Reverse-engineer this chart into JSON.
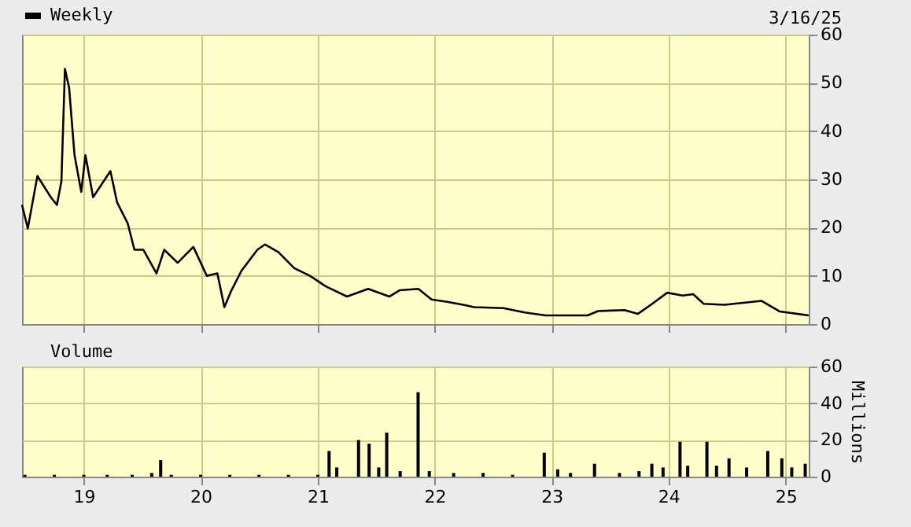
{
  "chart_data": [
    {
      "type": "line",
      "annotations": [
        "3/16/25"
      ],
      "x": [
        "2018-06-22",
        "2018-07-10",
        "2018-08-09",
        "2018-09-20",
        "2018-10-09",
        "2018-10-23",
        "2018-11-03",
        "2018-11-16",
        "2018-12-03",
        "2018-12-24",
        "2019-01-06",
        "2019-01-30",
        "2019-03-25",
        "2019-04-15",
        "2019-05-18",
        "2019-06-08",
        "2019-07-06",
        "2019-08-16",
        "2019-09-09",
        "2019-10-21",
        "2019-12-09",
        "2020-01-20",
        "2020-02-22",
        "2020-03-15",
        "2020-04-04",
        "2020-05-07",
        "2020-06-26",
        "2020-07-20",
        "2020-08-31",
        "2020-10-19",
        "2020-12-07",
        "2021-01-26",
        "2021-04-02",
        "2021-06-07",
        "2021-08-12",
        "2021-09-13",
        "2021-11-11",
        "2021-12-22",
        "2022-02-09",
        "2022-03-31",
        "2022-05-04",
        "2022-08-04",
        "2022-10-09",
        "2022-12-13",
        "2023-04-23",
        "2023-05-26",
        "2023-08-17",
        "2023-09-27",
        "2023-11-07",
        "2023-12-28",
        "2024-02-14",
        "2024-03-18",
        "2024-04-20",
        "2024-06-24",
        "2024-10-18",
        "2024-12-14",
        "2025-03-14"
      ],
      "series": [
        {
          "name": "Weekly",
          "color": "#000000",
          "values": [
            24.7,
            19.8,
            30.7,
            26.3,
            24.7,
            29.6,
            52.9,
            49,
            35,
            27.4,
            35,
            26.3,
            31.7,
            25.2,
            20.9,
            15.4,
            15.4,
            10.5,
            15.4,
            12.7,
            16,
            10,
            10.5,
            3.5,
            6.7,
            11,
            15.4,
            16.5,
            14.9,
            11.6,
            10,
            7.8,
            5.7,
            7.3,
            5.7,
            7,
            7.3,
            5.1,
            4.6,
            4,
            3.5,
            3.3,
            2.4,
            1.8,
            1.8,
            2.7,
            2.9,
            2.1,
            4,
            6.5,
            5.9,
            6.2,
            4.2,
            4,
            4.8,
            2.6,
            1.8
          ]
        }
      ],
      "xlim": [
        "2018-06-22",
        "2025-03-14"
      ],
      "xticks": [
        {
          "value": "2019-01-01",
          "label": null
        },
        {
          "value": "2020-01-01",
          "label": null
        },
        {
          "value": "2021-01-01",
          "label": null
        },
        {
          "value": "2022-01-01",
          "label": null
        },
        {
          "value": "2023-01-01",
          "label": null
        },
        {
          "value": "2024-01-01",
          "label": null
        },
        {
          "value": "2025-01-01",
          "label": null
        }
      ],
      "ylim": [
        0,
        60
      ],
      "yticks": [
        0,
        10,
        20,
        30,
        40,
        50,
        60
      ],
      "grid": true,
      "legend": "top left",
      "tick_labels": "y"
    },
    {
      "type": "bar",
      "x": [
        "2018-07-01",
        "2018-10-01",
        "2019-01-01",
        "2019-03-15",
        "2019-06-01",
        "2019-08-01",
        "2019-08-29",
        "2019-10-01",
        "2020-01-01",
        "2020-04-01",
        "2020-07-01",
        "2020-10-01",
        "2021-01-01",
        "2021-02-05",
        "2021-03-01",
        "2021-05-08",
        "2021-06-10",
        "2021-07-10",
        "2021-08-04",
        "2021-09-15",
        "2021-11-10",
        "2021-12-15",
        "2022-03-01",
        "2022-06-01",
        "2022-09-01",
        "2022-12-09",
        "2023-01-20",
        "2023-03-01",
        "2023-05-15",
        "2023-08-01",
        "2023-10-01",
        "2023-11-10",
        "2023-12-15",
        "2024-02-06",
        "2024-03-01",
        "2024-04-30",
        "2024-05-30",
        "2024-07-08",
        "2024-09-01",
        "2024-11-06",
        "2024-12-20",
        "2025-01-20",
        "2025-03-03"
      ],
      "series": [
        {
          "name": "Volume",
          "color": "#000000",
          "values": [
            1,
            1,
            1,
            1,
            1,
            2,
            9,
            1,
            1,
            1,
            1,
            1,
            1,
            14,
            5,
            20,
            18,
            5,
            24,
            3,
            46,
            3,
            2,
            2,
            1,
            13,
            4,
            2,
            7,
            2,
            3,
            7,
            5,
            19,
            6,
            19,
            6,
            10,
            5,
            14,
            10,
            5,
            7
          ]
        }
      ],
      "xlim": [
        "2018-06-22",
        "2025-03-14"
      ],
      "xticks": [
        {
          "value": "2019-01-01",
          "label": "19"
        },
        {
          "value": "2020-01-01",
          "label": "20"
        },
        {
          "value": "2021-01-01",
          "label": "21"
        },
        {
          "value": "2022-01-01",
          "label": "22"
        },
        {
          "value": "2023-01-01",
          "label": "23"
        },
        {
          "value": "2024-01-01",
          "label": "24"
        },
        {
          "value": "2025-01-01",
          "label": "25"
        }
      ],
      "ylim": [
        0,
        60
      ],
      "yticks": [
        0,
        20,
        40,
        60
      ],
      "ylabel": "Millions",
      "grid": true,
      "legend": "top left"
    }
  ]
}
